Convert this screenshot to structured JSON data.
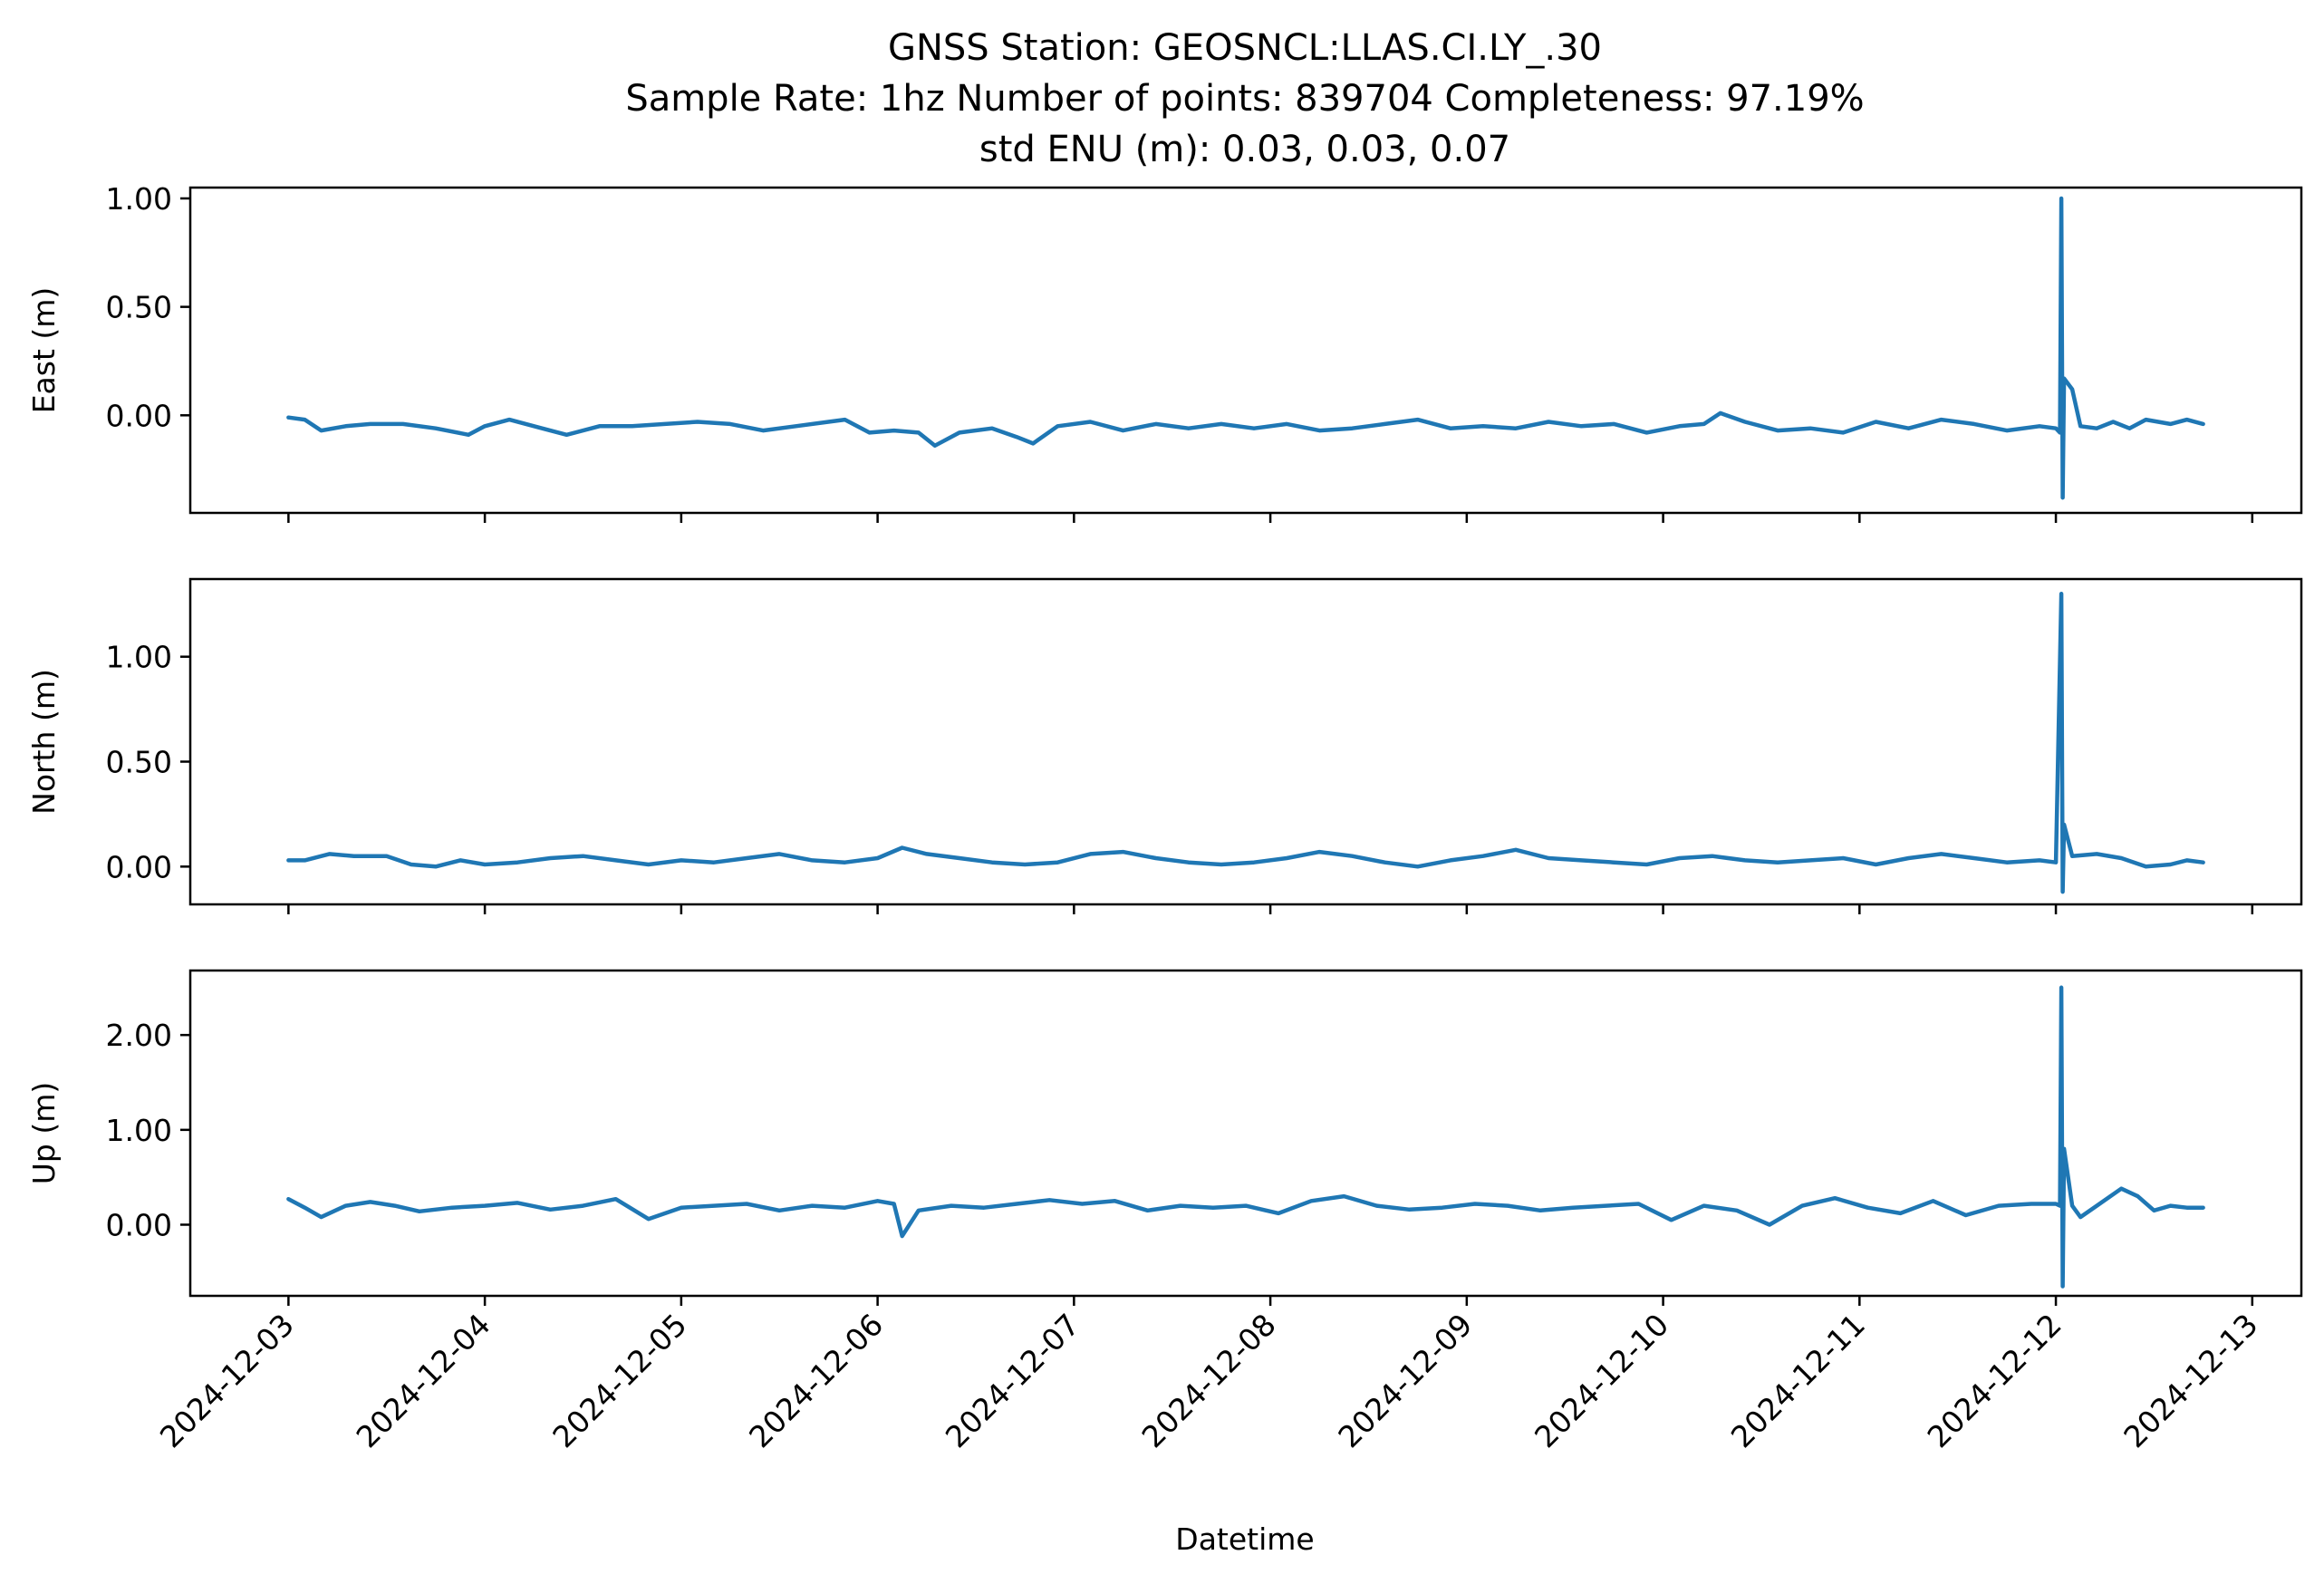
{
  "chart_data": {
    "type": "line",
    "title": [
      "GNSS Station: GEOSNCL:LLAS.CI.LY_.30",
      "Sample Rate: 1hz   Number of points: 839704    Completeness:  97.19%",
      "std ENU (m):  0.03, 0.03, 0.07"
    ],
    "xlabel": "Datetime",
    "x_ticks": [
      "2024-12-03",
      "2024-12-04",
      "2024-12-05",
      "2024-12-06",
      "2024-12-07",
      "2024-12-08",
      "2024-12-09",
      "2024-12-10",
      "2024-12-11",
      "2024-12-12",
      "2024-12-13"
    ],
    "xlim": [
      "2024-12-02T12:00",
      "2024-12-13T06:00"
    ],
    "series_color": "#1f77b4",
    "grid": false,
    "panels": [
      {
        "ylabel": "East (m)",
        "ylim": [
          -0.45,
          1.05
        ],
        "y_ticks": [
          1.0,
          0.5,
          0.0
        ],
        "y_tick_labels": [
          "1.00",
          "0.50",
          "0.00"
        ],
        "points": [
          [
            "2024-12-03T00:00",
            -0.01
          ],
          [
            "2024-12-03T02:00",
            -0.02
          ],
          [
            "2024-12-03T04:00",
            -0.07
          ],
          [
            "2024-12-03T07:00",
            -0.05
          ],
          [
            "2024-12-03T10:00",
            -0.04
          ],
          [
            "2024-12-03T14:00",
            -0.04
          ],
          [
            "2024-12-03T18:00",
            -0.06
          ],
          [
            "2024-12-03T22:00",
            -0.09
          ],
          [
            "2024-12-04T00:00",
            -0.05
          ],
          [
            "2024-12-04T03:00",
            -0.02
          ],
          [
            "2024-12-04T07:00",
            -0.06
          ],
          [
            "2024-12-04T10:00",
            -0.09
          ],
          [
            "2024-12-04T14:00",
            -0.05
          ],
          [
            "2024-12-04T18:00",
            -0.05
          ],
          [
            "2024-12-04T22:00",
            -0.04
          ],
          [
            "2024-12-05T02:00",
            -0.03
          ],
          [
            "2024-12-05T06:00",
            -0.04
          ],
          [
            "2024-12-05T10:00",
            -0.07
          ],
          [
            "2024-12-05T14:00",
            -0.05
          ],
          [
            "2024-12-05T18:00",
            -0.03
          ],
          [
            "2024-12-05T20:00",
            -0.02
          ],
          [
            "2024-12-05T23:00",
            -0.08
          ],
          [
            "2024-12-06T02:00",
            -0.07
          ],
          [
            "2024-12-06T05:00",
            -0.08
          ],
          [
            "2024-12-06T07:00",
            -0.14
          ],
          [
            "2024-12-06T10:00",
            -0.08
          ],
          [
            "2024-12-06T14:00",
            -0.06
          ],
          [
            "2024-12-06T17:00",
            -0.1
          ],
          [
            "2024-12-06T19:00",
            -0.13
          ],
          [
            "2024-12-06T22:00",
            -0.05
          ],
          [
            "2024-12-07T02:00",
            -0.03
          ],
          [
            "2024-12-07T06:00",
            -0.07
          ],
          [
            "2024-12-07T10:00",
            -0.04
          ],
          [
            "2024-12-07T14:00",
            -0.06
          ],
          [
            "2024-12-07T18:00",
            -0.04
          ],
          [
            "2024-12-07T22:00",
            -0.06
          ],
          [
            "2024-12-08T02:00",
            -0.04
          ],
          [
            "2024-12-08T06:00",
            -0.07
          ],
          [
            "2024-12-08T10:00",
            -0.06
          ],
          [
            "2024-12-08T14:00",
            -0.04
          ],
          [
            "2024-12-08T18:00",
            -0.02
          ],
          [
            "2024-12-08T22:00",
            -0.06
          ],
          [
            "2024-12-09T02:00",
            -0.05
          ],
          [
            "2024-12-09T06:00",
            -0.06
          ],
          [
            "2024-12-09T10:00",
            -0.03
          ],
          [
            "2024-12-09T14:00",
            -0.05
          ],
          [
            "2024-12-09T18:00",
            -0.04
          ],
          [
            "2024-12-09T22:00",
            -0.08
          ],
          [
            "2024-12-10T02:00",
            -0.05
          ],
          [
            "2024-12-10T05:00",
            -0.04
          ],
          [
            "2024-12-10T07:00",
            0.01
          ],
          [
            "2024-12-10T10:00",
            -0.03
          ],
          [
            "2024-12-10T14:00",
            -0.07
          ],
          [
            "2024-12-10T18:00",
            -0.06
          ],
          [
            "2024-12-10T22:00",
            -0.08
          ],
          [
            "2024-12-11T02:00",
            -0.03
          ],
          [
            "2024-12-11T06:00",
            -0.06
          ],
          [
            "2024-12-11T10:00",
            -0.02
          ],
          [
            "2024-12-11T14:00",
            -0.04
          ],
          [
            "2024-12-11T18:00",
            -0.07
          ],
          [
            "2024-12-11T22:00",
            -0.05
          ],
          [
            "2024-12-12T00:00",
            -0.06
          ],
          [
            "2024-12-12T00:30",
            -0.08
          ],
          [
            "2024-12-12T00:40",
            1.0
          ],
          [
            "2024-12-12T00:50",
            -0.38
          ],
          [
            "2024-12-12T01:00",
            0.17
          ],
          [
            "2024-12-12T02:00",
            0.12
          ],
          [
            "2024-12-12T03:00",
            -0.05
          ],
          [
            "2024-12-12T05:00",
            -0.06
          ],
          [
            "2024-12-12T07:00",
            -0.03
          ],
          [
            "2024-12-12T09:00",
            -0.06
          ],
          [
            "2024-12-12T11:00",
            -0.02
          ],
          [
            "2024-12-12T14:00",
            -0.04
          ],
          [
            "2024-12-12T16:00",
            -0.02
          ],
          [
            "2024-12-12T18:00",
            -0.04
          ]
        ]
      },
      {
        "ylabel": "North (m)",
        "ylim": [
          -0.18,
          1.37
        ],
        "y_ticks": [
          1.0,
          0.5,
          0.0
        ],
        "y_tick_labels": [
          "1.00",
          "0.50",
          "0.00"
        ],
        "points": [
          [
            "2024-12-03T00:00",
            0.03
          ],
          [
            "2024-12-03T02:00",
            0.03
          ],
          [
            "2024-12-03T05:00",
            0.06
          ],
          [
            "2024-12-03T08:00",
            0.05
          ],
          [
            "2024-12-03T12:00",
            0.05
          ],
          [
            "2024-12-03T15:00",
            0.01
          ],
          [
            "2024-12-03T18:00",
            0.0
          ],
          [
            "2024-12-03T21:00",
            0.03
          ],
          [
            "2024-12-04T00:00",
            0.01
          ],
          [
            "2024-12-04T04:00",
            0.02
          ],
          [
            "2024-12-04T08:00",
            0.04
          ],
          [
            "2024-12-04T12:00",
            0.05
          ],
          [
            "2024-12-04T16:00",
            0.03
          ],
          [
            "2024-12-04T20:00",
            0.01
          ],
          [
            "2024-12-05T00:00",
            0.03
          ],
          [
            "2024-12-05T04:00",
            0.02
          ],
          [
            "2024-12-05T08:00",
            0.04
          ],
          [
            "2024-12-05T12:00",
            0.06
          ],
          [
            "2024-12-05T16:00",
            0.03
          ],
          [
            "2024-12-05T20:00",
            0.02
          ],
          [
            "2024-12-06T00:00",
            0.04
          ],
          [
            "2024-12-06T03:00",
            0.09
          ],
          [
            "2024-12-06T06:00",
            0.06
          ],
          [
            "2024-12-06T10:00",
            0.04
          ],
          [
            "2024-12-06T14:00",
            0.02
          ],
          [
            "2024-12-06T18:00",
            0.01
          ],
          [
            "2024-12-06T22:00",
            0.02
          ],
          [
            "2024-12-07T02:00",
            0.06
          ],
          [
            "2024-12-07T06:00",
            0.07
          ],
          [
            "2024-12-07T10:00",
            0.04
          ],
          [
            "2024-12-07T14:00",
            0.02
          ],
          [
            "2024-12-07T18:00",
            0.01
          ],
          [
            "2024-12-07T22:00",
            0.02
          ],
          [
            "2024-12-08T02:00",
            0.04
          ],
          [
            "2024-12-08T06:00",
            0.07
          ],
          [
            "2024-12-08T10:00",
            0.05
          ],
          [
            "2024-12-08T14:00",
            0.02
          ],
          [
            "2024-12-08T18:00",
            0.0
          ],
          [
            "2024-12-08T22:00",
            0.03
          ],
          [
            "2024-12-09T02:00",
            0.05
          ],
          [
            "2024-12-09T06:00",
            0.08
          ],
          [
            "2024-12-09T10:00",
            0.04
          ],
          [
            "2024-12-09T14:00",
            0.03
          ],
          [
            "2024-12-09T18:00",
            0.02
          ],
          [
            "2024-12-09T22:00",
            0.01
          ],
          [
            "2024-12-10T02:00",
            0.04
          ],
          [
            "2024-12-10T06:00",
            0.05
          ],
          [
            "2024-12-10T10:00",
            0.03
          ],
          [
            "2024-12-10T14:00",
            0.02
          ],
          [
            "2024-12-10T18:00",
            0.03
          ],
          [
            "2024-12-10T22:00",
            0.04
          ],
          [
            "2024-12-11T02:00",
            0.01
          ],
          [
            "2024-12-11T06:00",
            0.04
          ],
          [
            "2024-12-11T10:00",
            0.06
          ],
          [
            "2024-12-11T14:00",
            0.04
          ],
          [
            "2024-12-11T18:00",
            0.02
          ],
          [
            "2024-12-11T22:00",
            0.03
          ],
          [
            "2024-12-12T00:00",
            0.02
          ],
          [
            "2024-12-12T00:40",
            1.3
          ],
          [
            "2024-12-12T00:50",
            -0.12
          ],
          [
            "2024-12-12T01:00",
            0.2
          ],
          [
            "2024-12-12T02:00",
            0.05
          ],
          [
            "2024-12-12T05:00",
            0.06
          ],
          [
            "2024-12-12T08:00",
            0.04
          ],
          [
            "2024-12-12T11:00",
            0.0
          ],
          [
            "2024-12-12T14:00",
            0.01
          ],
          [
            "2024-12-12T16:00",
            0.03
          ],
          [
            "2024-12-12T18:00",
            0.02
          ]
        ]
      },
      {
        "ylabel": "Up (m)",
        "ylim": [
          -0.75,
          2.68
        ],
        "y_ticks": [
          2.0,
          1.0,
          0.0
        ],
        "y_tick_labels": [
          "2.00",
          "1.00",
          "0.00"
        ],
        "points": [
          [
            "2024-12-03T00:00",
            0.27
          ],
          [
            "2024-12-03T02:00",
            0.18
          ],
          [
            "2024-12-03T04:00",
            0.08
          ],
          [
            "2024-12-03T07:00",
            0.2
          ],
          [
            "2024-12-03T10:00",
            0.24
          ],
          [
            "2024-12-03T13:00",
            0.2
          ],
          [
            "2024-12-03T16:00",
            0.14
          ],
          [
            "2024-12-03T20:00",
            0.18
          ],
          [
            "2024-12-04T00:00",
            0.2
          ],
          [
            "2024-12-04T04:00",
            0.23
          ],
          [
            "2024-12-04T08:00",
            0.16
          ],
          [
            "2024-12-04T12:00",
            0.2
          ],
          [
            "2024-12-04T16:00",
            0.27
          ],
          [
            "2024-12-04T20:00",
            0.06
          ],
          [
            "2024-12-05T00:00",
            0.18
          ],
          [
            "2024-12-05T04:00",
            0.2
          ],
          [
            "2024-12-05T08:00",
            0.22
          ],
          [
            "2024-12-05T12:00",
            0.15
          ],
          [
            "2024-12-05T16:00",
            0.2
          ],
          [
            "2024-12-05T20:00",
            0.18
          ],
          [
            "2024-12-06T00:00",
            0.25
          ],
          [
            "2024-12-06T02:00",
            0.22
          ],
          [
            "2024-12-06T03:00",
            -0.12
          ],
          [
            "2024-12-06T05:00",
            0.15
          ],
          [
            "2024-12-06T09:00",
            0.2
          ],
          [
            "2024-12-06T13:00",
            0.18
          ],
          [
            "2024-12-06T17:00",
            0.22
          ],
          [
            "2024-12-06T21:00",
            0.26
          ],
          [
            "2024-12-07T01:00",
            0.22
          ],
          [
            "2024-12-07T05:00",
            0.25
          ],
          [
            "2024-12-07T09:00",
            0.15
          ],
          [
            "2024-12-07T13:00",
            0.2
          ],
          [
            "2024-12-07T17:00",
            0.18
          ],
          [
            "2024-12-07T21:00",
            0.2
          ],
          [
            "2024-12-08T01:00",
            0.12
          ],
          [
            "2024-12-08T05:00",
            0.25
          ],
          [
            "2024-12-08T09:00",
            0.3
          ],
          [
            "2024-12-08T13:00",
            0.2
          ],
          [
            "2024-12-08T17:00",
            0.16
          ],
          [
            "2024-12-08T21:00",
            0.18
          ],
          [
            "2024-12-09T01:00",
            0.22
          ],
          [
            "2024-12-09T05:00",
            0.2
          ],
          [
            "2024-12-09T09:00",
            0.15
          ],
          [
            "2024-12-09T13:00",
            0.18
          ],
          [
            "2024-12-09T17:00",
            0.2
          ],
          [
            "2024-12-09T21:00",
            0.22
          ],
          [
            "2024-12-10T01:00",
            0.05
          ],
          [
            "2024-12-10T05:00",
            0.2
          ],
          [
            "2024-12-10T09:00",
            0.15
          ],
          [
            "2024-12-10T13:00",
            0.0
          ],
          [
            "2024-12-10T17:00",
            0.2
          ],
          [
            "2024-12-10T21:00",
            0.28
          ],
          [
            "2024-12-11T01:00",
            0.18
          ],
          [
            "2024-12-11T05:00",
            0.12
          ],
          [
            "2024-12-11T09:00",
            0.25
          ],
          [
            "2024-12-11T13:00",
            0.1
          ],
          [
            "2024-12-11T17:00",
            0.2
          ],
          [
            "2024-12-11T21:00",
            0.22
          ],
          [
            "2024-12-12T00:00",
            0.22
          ],
          [
            "2024-12-12T00:30",
            0.2
          ],
          [
            "2024-12-12T00:40",
            2.5
          ],
          [
            "2024-12-12T00:50",
            -0.65
          ],
          [
            "2024-12-12T01:00",
            0.8
          ],
          [
            "2024-12-12T02:00",
            0.2
          ],
          [
            "2024-12-12T03:00",
            0.08
          ],
          [
            "2024-12-12T05:00",
            0.2
          ],
          [
            "2024-12-12T08:00",
            0.38
          ],
          [
            "2024-12-12T10:00",
            0.3
          ],
          [
            "2024-12-12T12:00",
            0.15
          ],
          [
            "2024-12-12T14:00",
            0.2
          ],
          [
            "2024-12-12T16:00",
            0.18
          ],
          [
            "2024-12-12T18:00",
            0.18
          ]
        ]
      }
    ]
  }
}
